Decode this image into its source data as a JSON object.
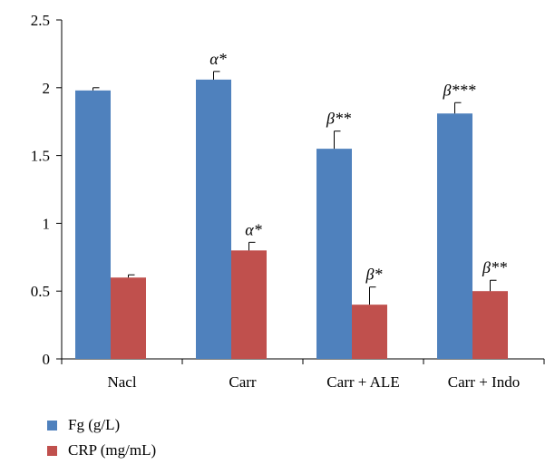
{
  "chart_data": {
    "type": "bar",
    "title": "",
    "xlabel": "",
    "ylabel": "",
    "categories": [
      "Nacl",
      "Carr",
      "Carr + ALE",
      "Carr + Indo"
    ],
    "ylim": [
      0,
      2.5
    ],
    "yticks": [
      0,
      0.5,
      1,
      1.5,
      2,
      2.5
    ],
    "ytick_labels": [
      "0",
      "0.5",
      "1",
      "1.5",
      "2",
      "2.5"
    ],
    "grid": false,
    "legend_position": "bottom-left",
    "series": [
      {
        "name": "Fg (g/L)",
        "color": "#4f81bd",
        "values": [
          1.98,
          2.06,
          1.55,
          1.81
        ],
        "errors": [
          0.02,
          0.06,
          0.13,
          0.08
        ],
        "annotations": [
          "",
          "α*",
          "β**",
          "β***"
        ]
      },
      {
        "name": "CRP (mg/mL)",
        "color": "#c0504d",
        "values": [
          0.6,
          0.8,
          0.4,
          0.5
        ],
        "errors": [
          0.02,
          0.06,
          0.13,
          0.08
        ],
        "annotations": [
          "",
          "α*",
          "β*",
          "β**"
        ]
      }
    ]
  }
}
